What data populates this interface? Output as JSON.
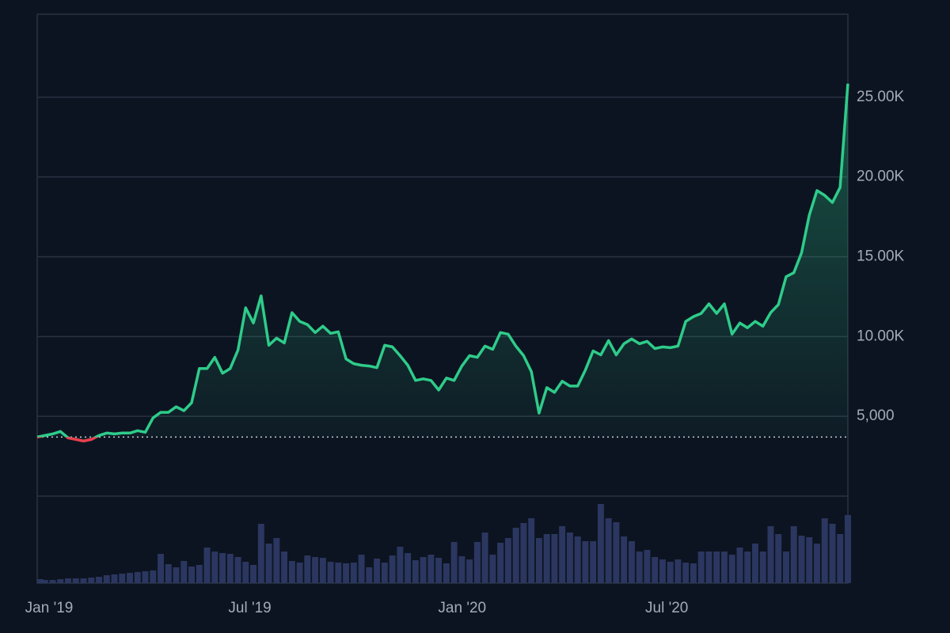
{
  "chart_data": {
    "type": "line",
    "x": [
      0,
      1,
      2,
      3,
      4,
      5,
      6,
      7,
      8,
      9,
      10,
      11,
      12,
      13,
      14,
      15,
      16,
      17,
      18,
      19,
      20,
      21,
      22,
      23,
      24,
      25,
      26,
      27,
      28,
      29,
      30,
      31,
      32,
      33,
      34,
      35,
      36,
      37,
      38,
      39,
      40,
      41,
      42,
      43,
      44,
      45,
      46,
      47,
      48,
      49,
      50,
      51,
      52,
      53,
      54,
      55,
      56,
      57,
      58,
      59,
      60,
      61,
      62,
      63,
      64,
      65,
      66,
      67,
      68,
      69,
      70,
      71,
      72,
      73,
      74,
      75,
      76,
      77,
      78,
      79,
      80,
      81,
      82,
      83,
      84,
      85,
      86,
      87,
      88,
      89,
      90,
      91,
      92,
      93,
      94,
      95,
      96,
      97,
      98,
      99,
      100,
      101,
      102,
      103,
      104,
      105
    ],
    "values": [
      3700,
      3800,
      3900,
      4050,
      3650,
      3550,
      3450,
      3550,
      3800,
      3950,
      3900,
      3950,
      3950,
      4100,
      4000,
      4900,
      5250,
      5250,
      5600,
      5350,
      5850,
      8000,
      8000,
      8700,
      7700,
      8000,
      9150,
      11800,
      10850,
      12550,
      9450,
      9900,
      9600,
      11500,
      10950,
      10750,
      10250,
      10650,
      10200,
      10300,
      8600,
      8300,
      8200,
      8150,
      8050,
      9450,
      9350,
      8800,
      8200,
      7250,
      7350,
      7250,
      6650,
      7400,
      7250,
      8150,
      8800,
      8700,
      9400,
      9200,
      10250,
      10150,
      9400,
      8800,
      7800,
      5200,
      6800,
      6500,
      7200,
      6900,
      6900,
      7900,
      9100,
      8850,
      9750,
      8850,
      9550,
      9850,
      9550,
      9700,
      9250,
      9350,
      9300,
      9400,
      10950,
      11250,
      11450,
      12050,
      11450,
      12050,
      10150,
      10850,
      10550,
      10950,
      10650,
      11500,
      12000,
      13750,
      14000,
      15250,
      17600,
      19150,
      18850,
      18400,
      19350,
      25850
    ],
    "volume": [
      5,
      4,
      4,
      5,
      6,
      6,
      6,
      7,
      8,
      10,
      11,
      12,
      13,
      14,
      15,
      16,
      37,
      24,
      20,
      28,
      21,
      23,
      45,
      40,
      38,
      37,
      33,
      27,
      23,
      75,
      50,
      57,
      40,
      28,
      26,
      35,
      33,
      32,
      27,
      26,
      25,
      26,
      36,
      20,
      31,
      26,
      35,
      46,
      38,
      29,
      33,
      36,
      32,
      25,
      52,
      34,
      30,
      52,
      64,
      36,
      51,
      57,
      70,
      76,
      82,
      57,
      62,
      62,
      72,
      64,
      59,
      53,
      53,
      100,
      82,
      77,
      59,
      53,
      40,
      42,
      33,
      30,
      27,
      30,
      26,
      25,
      40,
      40,
      40,
      40,
      36,
      45,
      40,
      50,
      40,
      72,
      62,
      40,
      72,
      60,
      58,
      50,
      82,
      75,
      62,
      86
    ],
    "baseline": 3700,
    "color": "#2ecc8a",
    "down_color": "#e8404e",
    "volume_color": "#2b3760",
    "xlim": [
      0,
      105
    ],
    "xticks": [
      {
        "value": 0,
        "label": "Jan '19"
      },
      {
        "value": 26,
        "label": "Jul '19"
      },
      {
        "value": 53.5,
        "label": "Jan '20"
      },
      {
        "value": 80,
        "label": "Jul '20"
      }
    ],
    "ylim": [
      0,
      30000
    ],
    "yticks": [
      {
        "value": 5000,
        "label": "5,000"
      },
      {
        "value": 10000,
        "label": "10.00K"
      },
      {
        "value": 15000,
        "label": "15.00K"
      },
      {
        "value": 20000,
        "label": "20.00K"
      },
      {
        "value": 25000,
        "label": "25.00K"
      }
    ],
    "volume_ylim": [
      0,
      110
    ],
    "grid": true
  }
}
